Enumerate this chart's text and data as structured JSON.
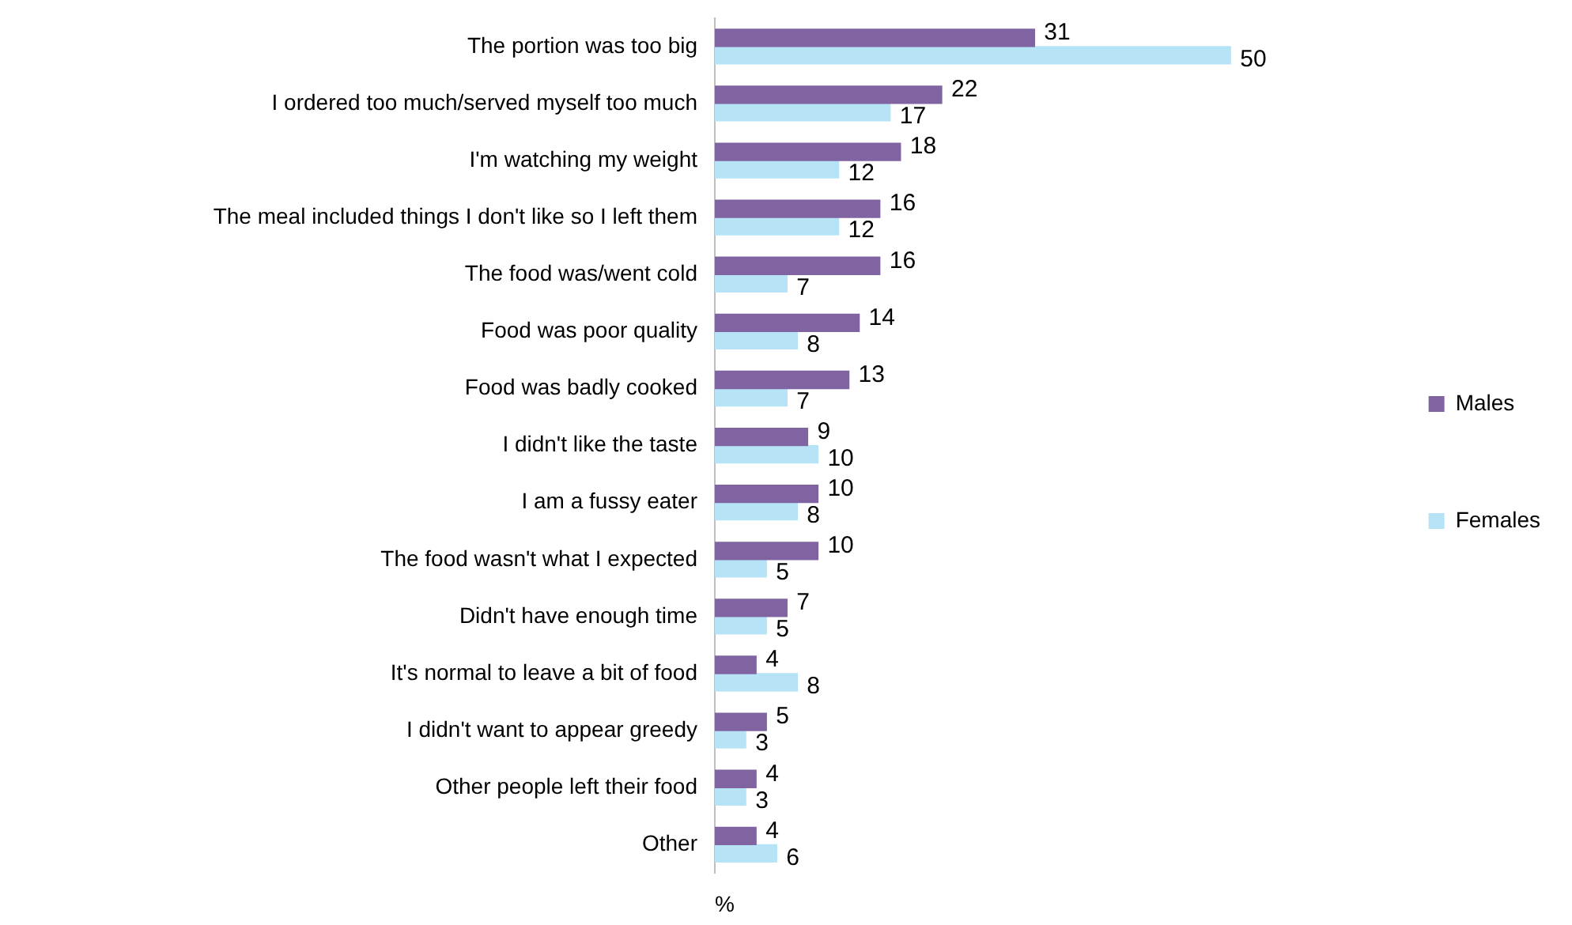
{
  "chart_data": {
    "type": "bar",
    "orientation": "horizontal",
    "xlabel": "%",
    "categories": [
      "The portion was too big",
      "I ordered too much/served myself too much",
      "I'm watching my weight",
      "The meal included things I don't like so I left them",
      "The food was/went cold",
      "Food was poor quality",
      "Food was badly cooked",
      "I didn't like the taste",
      "I am a fussy eater",
      "The food wasn't what I expected",
      "Didn't have enough time",
      "It's normal to leave a bit of food",
      "I didn't want to appear greedy",
      "Other people left their food",
      "Other"
    ],
    "series": [
      {
        "name": "Males",
        "color": "#8064a2",
        "values": [
          31,
          22,
          18,
          16,
          16,
          14,
          13,
          9,
          10,
          10,
          7,
          4,
          5,
          4,
          4
        ]
      },
      {
        "name": "Females",
        "color": "#b7e3f6",
        "values": [
          50,
          17,
          12,
          12,
          7,
          8,
          7,
          10,
          8,
          5,
          5,
          8,
          3,
          3,
          6
        ]
      }
    ],
    "data_labels": true,
    "legend": "right",
    "grid": false,
    "tick_labels": "y"
  }
}
